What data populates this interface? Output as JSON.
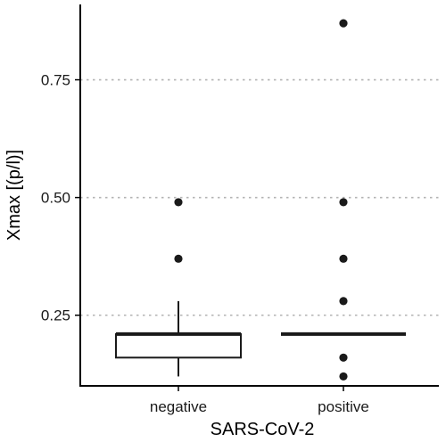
{
  "chart_data": {
    "type": "box",
    "xlabel": "SARS-CoV-2",
    "ylabel": "Xmax [(p/l)]",
    "ylim": [
      0.1,
      0.91
    ],
    "yticks": [
      0.25,
      0.5,
      0.75
    ],
    "ytick_labels": [
      "0.25",
      "0.50",
      "0.75"
    ],
    "grid": "horizontal-dotted",
    "categories": [
      "negative",
      "positive"
    ],
    "boxes": [
      {
        "name": "negative",
        "lower_whisker": 0.12,
        "q1": 0.16,
        "median": 0.21,
        "q3": 0.21,
        "upper_whisker": 0.28,
        "outliers": [
          0.37,
          0.49
        ]
      },
      {
        "name": "positive",
        "lower_whisker": 0.21,
        "q1": 0.21,
        "median": 0.21,
        "q3": 0.21,
        "upper_whisker": 0.21,
        "outliers": [
          0.12,
          0.16,
          0.28,
          0.37,
          0.49,
          0.87
        ]
      }
    ]
  }
}
